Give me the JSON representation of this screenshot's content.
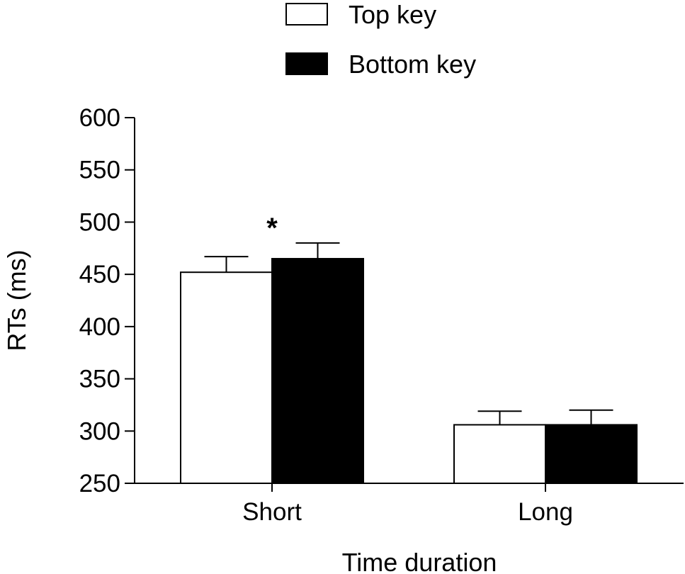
{
  "chart_data": {
    "type": "bar",
    "categories": [
      "Short",
      "Long"
    ],
    "series": [
      {
        "name": "Top key",
        "values": [
          452,
          306
        ],
        "errors": [
          15,
          13
        ],
        "color": "#ffffff"
      },
      {
        "name": "Bottom key",
        "values": [
          465,
          306
        ],
        "errors": [
          15,
          14
        ],
        "color": "#000000"
      }
    ],
    "xlabel": "Time duration",
    "ylabel": "RTs (ms)",
    "ylim": [
      250,
      600
    ],
    "yticks": [
      250,
      300,
      350,
      400,
      450,
      500,
      550,
      600
    ],
    "grid": false,
    "legend_position": "top-center",
    "annotations": [
      {
        "text": "*",
        "category": "Short"
      }
    ]
  }
}
